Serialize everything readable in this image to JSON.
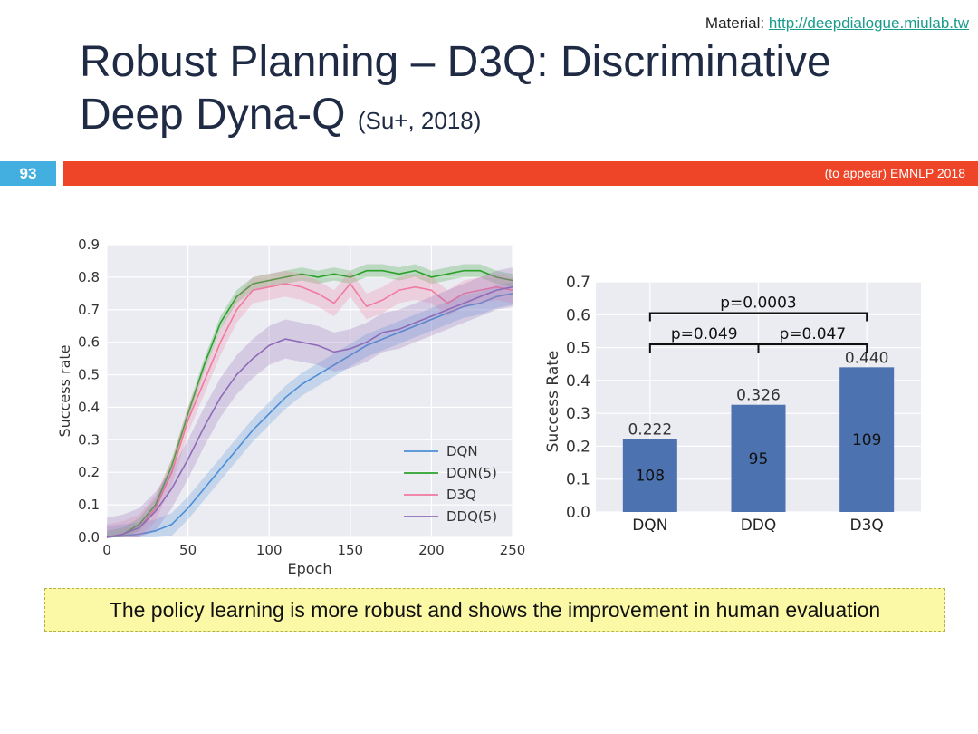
{
  "header": {
    "material_label": "Material:",
    "material_link": "http://deepdialogue.miulab.tw",
    "title_line1": "Robust Planning – D3Q: Discriminative",
    "title_line2": "Deep Dyna-Q",
    "citation": "(Su+, 2018)",
    "slide_number": "93",
    "venue": "(to appear) EMNLP 2018"
  },
  "callout": "The policy learning is more robust and shows the improvement in human evaluation",
  "colors": {
    "bar": "#ee4427",
    "slide_num": "#43aee0",
    "bars": "#4c72b0"
  },
  "chart_data": [
    {
      "type": "line",
      "xlabel": "Epoch",
      "ylabel": "Success rate",
      "xlim": [
        0,
        250
      ],
      "ylim": [
        0,
        0.9
      ],
      "x_ticks": [
        "0",
        "50",
        "100",
        "150",
        "200",
        "250"
      ],
      "y_ticks": [
        "0.0",
        "0.1",
        "0.2",
        "0.3",
        "0.4",
        "0.5",
        "0.6",
        "0.7",
        "0.8",
        "0.9"
      ],
      "grid": true,
      "legend_position": "lower-right",
      "series": [
        {
          "name": "DQN",
          "color": "#4c8fd6",
          "band": 0.035,
          "points": [
            [
              0,
              0
            ],
            [
              20,
              0.01
            ],
            [
              30,
              0.02
            ],
            [
              40,
              0.04
            ],
            [
              50,
              0.09
            ],
            [
              60,
              0.15
            ],
            [
              70,
              0.21
            ],
            [
              80,
              0.27
            ],
            [
              90,
              0.33
            ],
            [
              100,
              0.38
            ],
            [
              110,
              0.43
            ],
            [
              120,
              0.47
            ],
            [
              130,
              0.5
            ],
            [
              140,
              0.53
            ],
            [
              150,
              0.56
            ],
            [
              160,
              0.59
            ],
            [
              170,
              0.61
            ],
            [
              180,
              0.63
            ],
            [
              190,
              0.65
            ],
            [
              200,
              0.67
            ],
            [
              210,
              0.69
            ],
            [
              220,
              0.71
            ],
            [
              230,
              0.72
            ],
            [
              240,
              0.74
            ],
            [
              250,
              0.75
            ]
          ]
        },
        {
          "name": "DQN(5)",
          "color": "#2ca02c",
          "band": 0.02,
          "points": [
            [
              0,
              0
            ],
            [
              10,
              0.01
            ],
            [
              20,
              0.04
            ],
            [
              30,
              0.1
            ],
            [
              40,
              0.22
            ],
            [
              50,
              0.38
            ],
            [
              60,
              0.53
            ],
            [
              70,
              0.66
            ],
            [
              80,
              0.74
            ],
            [
              90,
              0.78
            ],
            [
              100,
              0.79
            ],
            [
              110,
              0.8
            ],
            [
              120,
              0.81
            ],
            [
              130,
              0.8
            ],
            [
              140,
              0.81
            ],
            [
              150,
              0.8
            ],
            [
              160,
              0.82
            ],
            [
              170,
              0.82
            ],
            [
              180,
              0.81
            ],
            [
              190,
              0.82
            ],
            [
              200,
              0.8
            ],
            [
              210,
              0.81
            ],
            [
              220,
              0.82
            ],
            [
              230,
              0.82
            ],
            [
              240,
              0.8
            ],
            [
              250,
              0.79
            ]
          ]
        },
        {
          "name": "D3Q",
          "color": "#f07aa0",
          "band": 0.04,
          "points": [
            [
              0,
              0
            ],
            [
              10,
              0.01
            ],
            [
              20,
              0.03
            ],
            [
              30,
              0.09
            ],
            [
              40,
              0.2
            ],
            [
              50,
              0.36
            ],
            [
              60,
              0.48
            ],
            [
              70,
              0.6
            ],
            [
              80,
              0.7
            ],
            [
              90,
              0.76
            ],
            [
              100,
              0.77
            ],
            [
              110,
              0.78
            ],
            [
              120,
              0.77
            ],
            [
              130,
              0.75
            ],
            [
              140,
              0.72
            ],
            [
              150,
              0.78
            ],
            [
              160,
              0.71
            ],
            [
              170,
              0.73
            ],
            [
              180,
              0.76
            ],
            [
              190,
              0.77
            ],
            [
              200,
              0.76
            ],
            [
              210,
              0.72
            ],
            [
              220,
              0.75
            ],
            [
              230,
              0.76
            ],
            [
              240,
              0.77
            ],
            [
              250,
              0.76
            ]
          ]
        },
        {
          "name": "DDQ(5)",
          "color": "#8e6bb8",
          "band": 0.06,
          "points": [
            [
              0,
              0
            ],
            [
              10,
              0.01
            ],
            [
              20,
              0.03
            ],
            [
              30,
              0.08
            ],
            [
              40,
              0.15
            ],
            [
              50,
              0.24
            ],
            [
              60,
              0.34
            ],
            [
              70,
              0.43
            ],
            [
              80,
              0.5
            ],
            [
              90,
              0.55
            ],
            [
              100,
              0.59
            ],
            [
              110,
              0.61
            ],
            [
              120,
              0.6
            ],
            [
              130,
              0.59
            ],
            [
              140,
              0.57
            ],
            [
              150,
              0.58
            ],
            [
              160,
              0.6
            ],
            [
              170,
              0.63
            ],
            [
              180,
              0.64
            ],
            [
              190,
              0.66
            ],
            [
              200,
              0.68
            ],
            [
              210,
              0.7
            ],
            [
              220,
              0.72
            ],
            [
              230,
              0.74
            ],
            [
              240,
              0.76
            ],
            [
              250,
              0.77
            ]
          ]
        }
      ]
    },
    {
      "type": "bar",
      "ylabel": "Success Rate",
      "ylim": [
        0,
        0.7
      ],
      "y_ticks": [
        "0.0",
        "0.1",
        "0.2",
        "0.3",
        "0.4",
        "0.5",
        "0.6",
        "0.7"
      ],
      "categories": [
        "DQN",
        "DDQ",
        "D3Q"
      ],
      "values": [
        0.222,
        0.326,
        0.44
      ],
      "value_labels": [
        "0.222",
        "0.326",
        "0.440"
      ],
      "counts": [
        "108",
        "95",
        "109"
      ],
      "grid": true,
      "significance": [
        {
          "from": 0,
          "to": 2,
          "label": "p=0.0003",
          "level": 0.605
        },
        {
          "from": 0,
          "to": 1,
          "label": "p=0.049",
          "level": 0.51
        },
        {
          "from": 1,
          "to": 2,
          "label": "p=0.047",
          "level": 0.51
        }
      ]
    }
  ]
}
